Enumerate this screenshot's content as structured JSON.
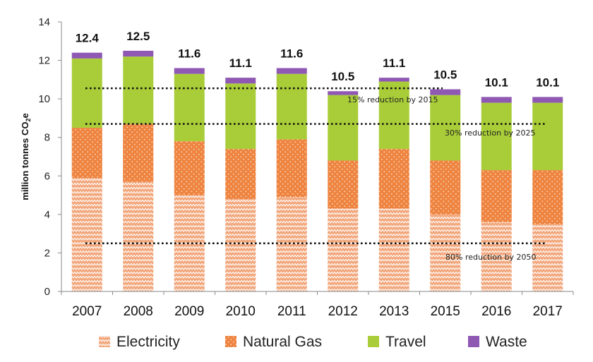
{
  "chart_data": {
    "type": "bar",
    "stacked": true,
    "title": "",
    "xlabel": "",
    "ylabel": "million tonnes CO",
    "ylabel_sub": "2",
    "ylabel_tail": "e",
    "ylim": [
      0,
      14
    ],
    "yticks": [
      0,
      2,
      4,
      6,
      8,
      10,
      12,
      14
    ],
    "grid": false,
    "legend_position": "bottom",
    "categories": [
      "2007",
      "2008",
      "2009",
      "2010",
      "2011",
      "2012",
      "2013",
      "2015",
      "2016",
      "2017"
    ],
    "totals": [
      "12.4",
      "12.5",
      "11.6",
      "11.1",
      "11.6",
      "10.5",
      "11.1",
      "10.5",
      "10.1",
      "10.1"
    ],
    "series": [
      {
        "name": "Electricity",
        "color": "#f2a77c",
        "pattern": "zigzag",
        "values": [
          5.9,
          5.7,
          5.0,
          4.8,
          4.9,
          4.3,
          4.3,
          4.0,
          3.6,
          3.5
        ]
      },
      {
        "name": "Natural Gas",
        "color": "#ee8440",
        "pattern": "dots",
        "values": [
          2.6,
          3.0,
          2.8,
          2.6,
          3.0,
          2.5,
          3.1,
          2.8,
          2.7,
          2.8
        ]
      },
      {
        "name": "Travel",
        "color": "#a9cd38",
        "pattern": "solid",
        "values": [
          3.6,
          3.5,
          3.5,
          3.4,
          3.4,
          3.4,
          3.5,
          3.4,
          3.5,
          3.5
        ]
      },
      {
        "name": "Waste",
        "color": "#8e58b3",
        "pattern": "solid",
        "values": [
          0.3,
          0.3,
          0.3,
          0.3,
          0.3,
          0.2,
          0.2,
          0.3,
          0.3,
          0.3
        ]
      }
    ],
    "annotations": [
      {
        "text": "15% reduction by 2015",
        "y": 10.55
      },
      {
        "text": "30% reduction by 2025",
        "y": 8.7
      },
      {
        "text": "80% reduction by 2050",
        "y": 2.5
      }
    ]
  }
}
